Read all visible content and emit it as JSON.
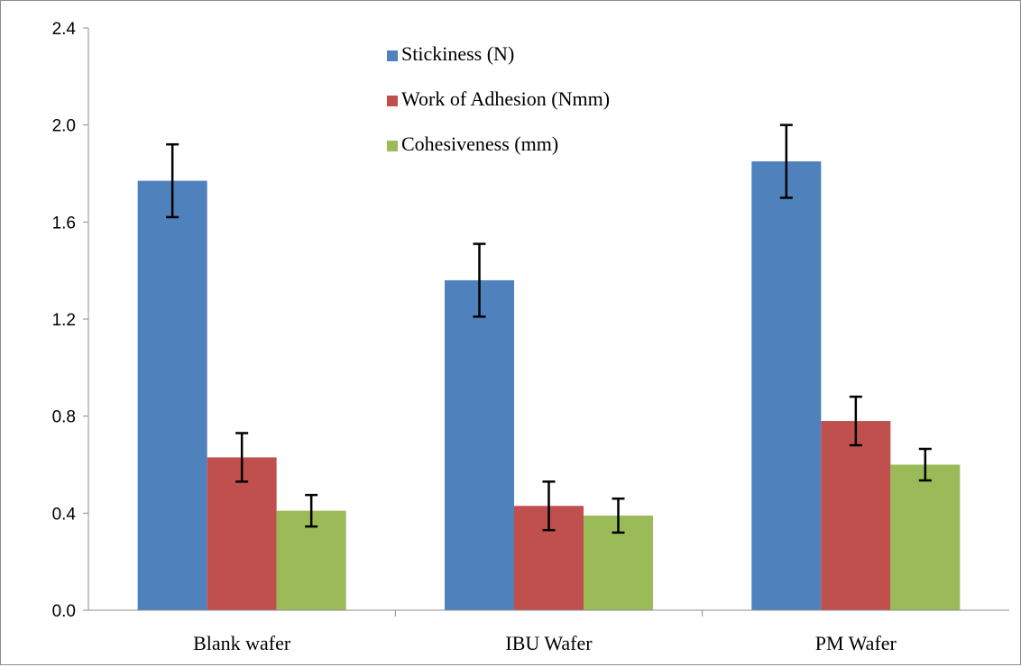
{
  "chart_data": {
    "type": "bar",
    "categories": [
      "Blank wafer",
      "IBU Wafer",
      "PM Wafer"
    ],
    "series": [
      {
        "name": "Stickiness (N)",
        "color": "#4f81bd",
        "values": [
          1.77,
          1.36,
          1.85
        ],
        "errors": [
          0.15,
          0.15,
          0.15
        ]
      },
      {
        "name": "Work of Adhesion (Nmm)",
        "color": "#c0504d",
        "values": [
          0.63,
          0.43,
          0.78
        ],
        "errors": [
          0.1,
          0.1,
          0.1
        ]
      },
      {
        "name": "Cohesiveness (mm)",
        "color": "#9bbb59",
        "values": [
          0.41,
          0.39,
          0.6
        ],
        "errors": [
          0.065,
          0.07,
          0.065
        ]
      }
    ],
    "yticks": [
      "0.0",
      "0.4",
      "0.8",
      "1.2",
      "1.6",
      "2.0",
      "2.4"
    ],
    "ylim": [
      0,
      2.4
    ],
    "title": "",
    "xlabel": "",
    "ylabel": "",
    "grid": false,
    "legend_position": "top-center"
  }
}
